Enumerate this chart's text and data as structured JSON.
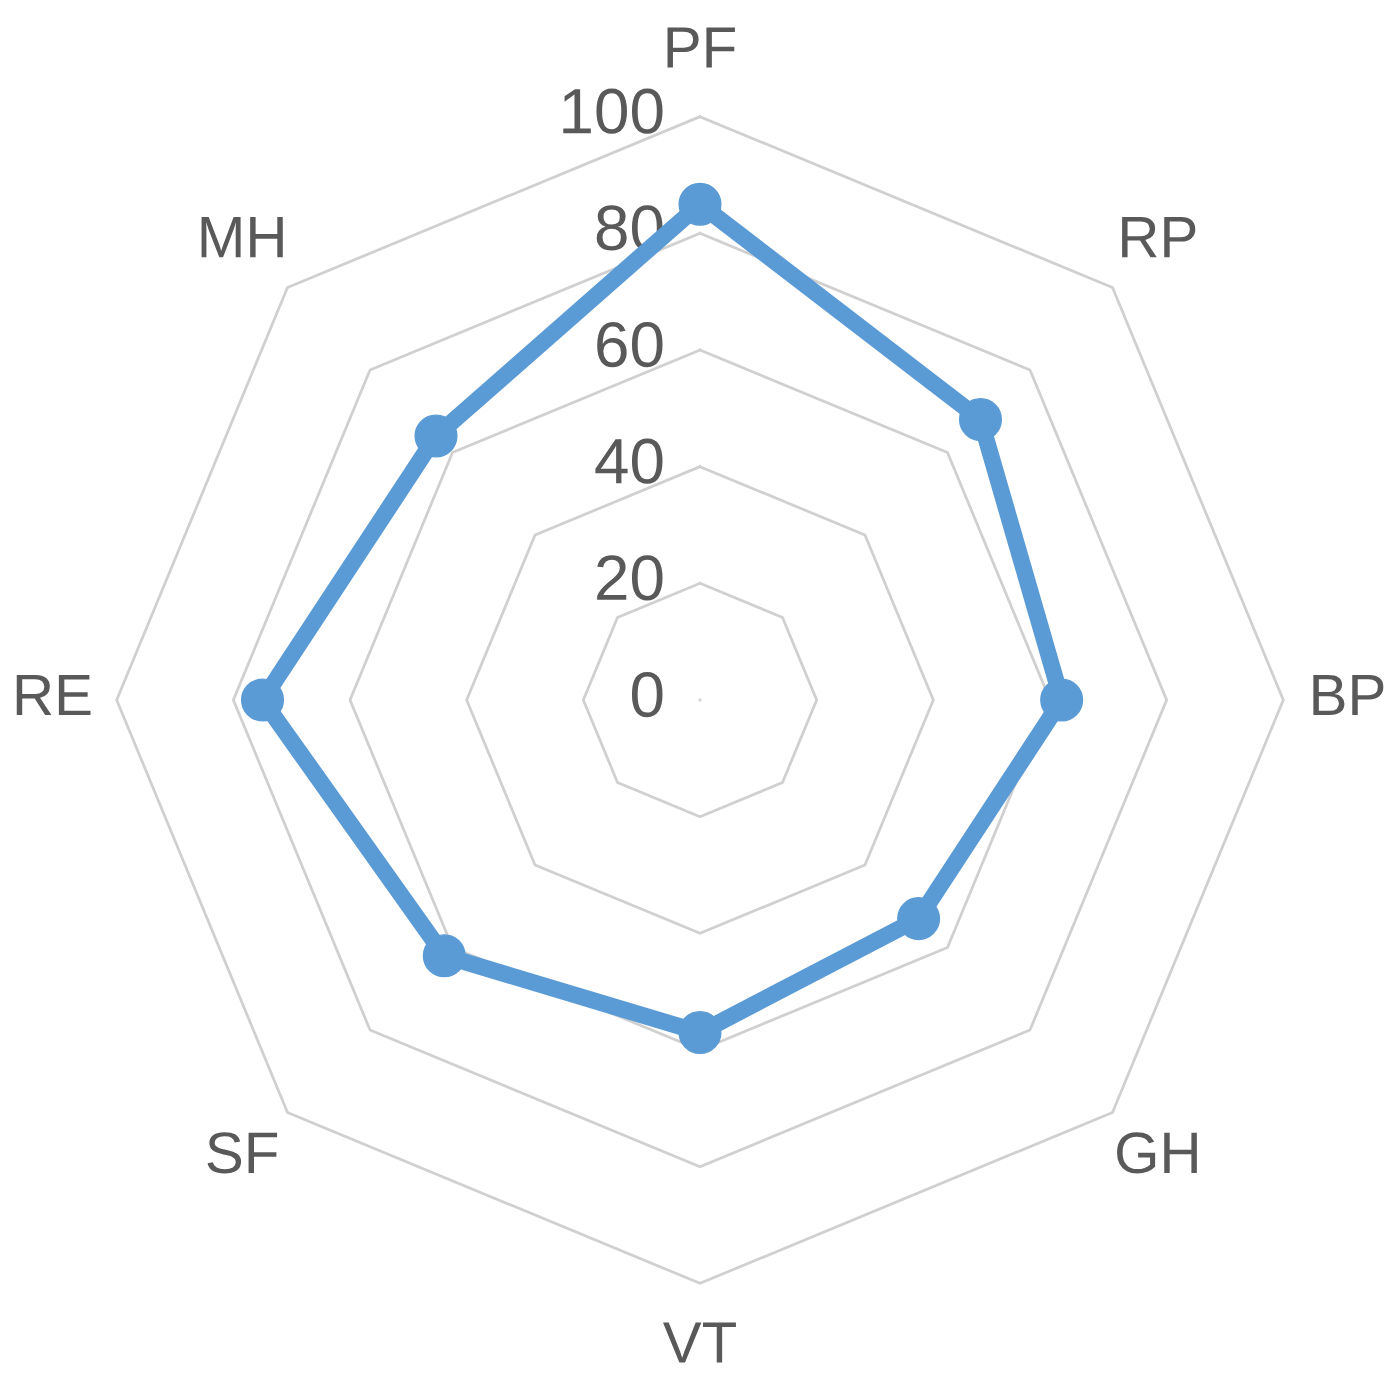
{
  "chart_data": {
    "type": "radar",
    "categories": [
      "PF",
      "RP",
      "BP",
      "GH",
      "VT",
      "SF",
      "RE",
      "MH"
    ],
    "series": [
      {
        "color": "#5b9bd5",
        "values": [
          85,
          68,
          62,
          53,
          57,
          62,
          75,
          64
        ]
      }
    ],
    "ylim": [
      0,
      100
    ],
    "yticks": [
      0,
      20,
      40,
      60,
      80,
      100
    ],
    "marker": "circle",
    "line_style": "solid",
    "grid": true
  }
}
